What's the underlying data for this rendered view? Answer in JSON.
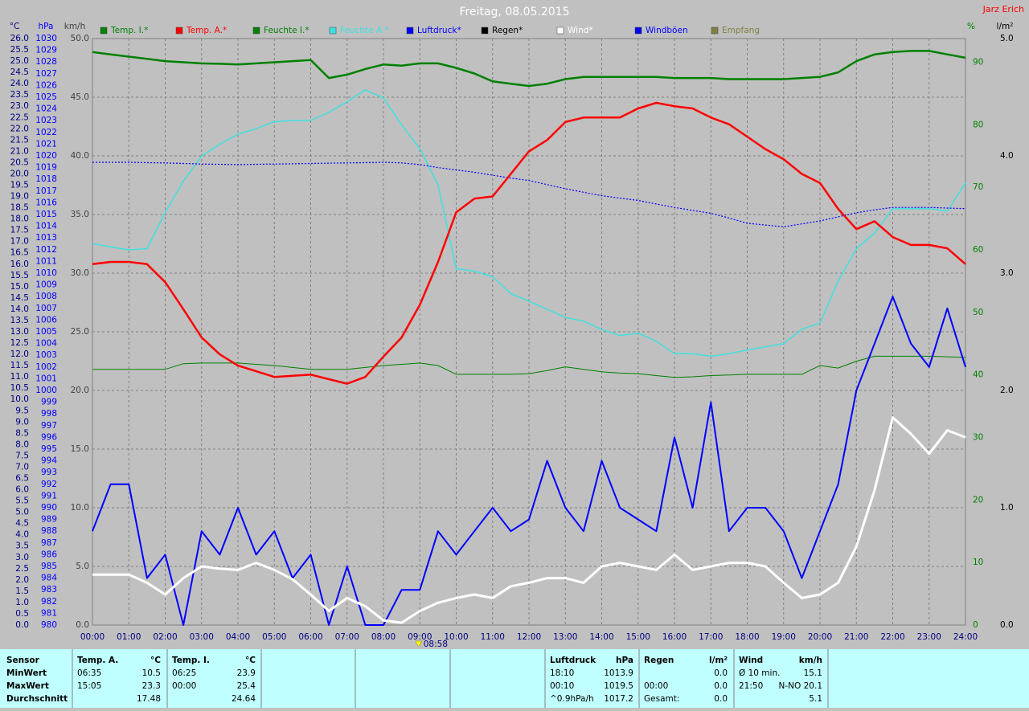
{
  "chart_data": {
    "type": "line",
    "title": "Freitag, 08.05.2015",
    "author": "Jarz Erich",
    "x": [
      0,
      0.5,
      1,
      1.5,
      2,
      2.5,
      3,
      3.5,
      4,
      4.5,
      5,
      5.5,
      6,
      6.5,
      7,
      7.5,
      8,
      8.5,
      9,
      9.5,
      10,
      10.5,
      11,
      11.5,
      12,
      12.5,
      13,
      13.5,
      14,
      14.5,
      15,
      15.5,
      16,
      16.5,
      17,
      17.5,
      18,
      18.5,
      19,
      19.5,
      20,
      20.5,
      21,
      21.5,
      22,
      22.5,
      23,
      23.5,
      24
    ],
    "xlim": [
      0,
      24
    ],
    "xticks": [
      {
        "value": 0,
        "label": "00:00"
      },
      {
        "value": 1,
        "label": "01:00"
      },
      {
        "value": 2,
        "label": "02:00"
      },
      {
        "value": 3,
        "label": "03:00"
      },
      {
        "value": 4,
        "label": "04:00"
      },
      {
        "value": 5,
        "label": "05:00"
      },
      {
        "value": 6,
        "label": "06:00"
      },
      {
        "value": 7,
        "label": "07:00"
      },
      {
        "value": 8,
        "label": "08:00"
      },
      {
        "value": 9,
        "label": "09:00"
      },
      {
        "value": 10,
        "label": "10:00"
      },
      {
        "value": 11,
        "label": "11:00"
      },
      {
        "value": 12,
        "label": "12:00"
      },
      {
        "value": 13,
        "label": "13:00"
      },
      {
        "value": 14,
        "label": "14:00"
      },
      {
        "value": 15,
        "label": "15:00"
      },
      {
        "value": 16,
        "label": "16:00"
      },
      {
        "value": 17,
        "label": "17:00"
      },
      {
        "value": 18,
        "label": "18:00"
      },
      {
        "value": 19,
        "label": "19:00"
      },
      {
        "value": 20,
        "label": "20:00"
      },
      {
        "value": 21,
        "label": "21:00"
      },
      {
        "value": 22,
        "label": "22:00"
      },
      {
        "value": 23,
        "label": "23:00"
      },
      {
        "value": 24,
        "label": "24:00"
      }
    ],
    "marker": {
      "x": 8.9667,
      "label": "08:58"
    },
    "grid": true,
    "axes": {
      "temp": {
        "unit": "°C",
        "lim": [
          0,
          26
        ],
        "ticks": [
          {
            "value": 0,
            "label": "0.0"
          },
          {
            "value": 0.5,
            "label": "0.5"
          },
          {
            "value": 1,
            "label": "1.0"
          },
          {
            "value": 1.5,
            "label": "1.5"
          },
          {
            "value": 2,
            "label": "2.0"
          },
          {
            "value": 2.5,
            "label": "2.5"
          },
          {
            "value": 3,
            "label": "3.0"
          },
          {
            "value": 3.5,
            "label": "3.5"
          },
          {
            "value": 4,
            "label": "4.0"
          },
          {
            "value": 4.5,
            "label": "4.5"
          },
          {
            "value": 5,
            "label": "5.0"
          },
          {
            "value": 5.5,
            "label": "5.5"
          },
          {
            "value": 6,
            "label": "6.0"
          },
          {
            "value": 6.5,
            "label": "6.5"
          },
          {
            "value": 7,
            "label": "7.0"
          },
          {
            "value": 7.5,
            "label": "7.5"
          },
          {
            "value": 8,
            "label": "8.0"
          },
          {
            "value": 8.5,
            "label": "8.5"
          },
          {
            "value": 9,
            "label": "9.0"
          },
          {
            "value": 9.5,
            "label": "9.5"
          },
          {
            "value": 10,
            "label": "10.0"
          },
          {
            "value": 10.5,
            "label": "10.5"
          },
          {
            "value": 11,
            "label": "11.0"
          },
          {
            "value": 11.5,
            "label": "11.5"
          },
          {
            "value": 12,
            "label": "12.0"
          },
          {
            "value": 12.5,
            "label": "12.5"
          },
          {
            "value": 13,
            "label": "13.0"
          },
          {
            "value": 13.5,
            "label": "13.5"
          },
          {
            "value": 14,
            "label": "14.0"
          },
          {
            "value": 14.5,
            "label": "14.5"
          },
          {
            "value": 15,
            "label": "15.0"
          },
          {
            "value": 15.5,
            "label": "15.5"
          },
          {
            "value": 16,
            "label": "16.0"
          },
          {
            "value": 16.5,
            "label": "16.5"
          },
          {
            "value": 17,
            "label": "17.0"
          },
          {
            "value": 17.5,
            "label": "17.5"
          },
          {
            "value": 18,
            "label": "18.0"
          },
          {
            "value": 18.5,
            "label": "18.5"
          },
          {
            "value": 19,
            "label": "19.0"
          },
          {
            "value": 19.5,
            "label": "19.5"
          },
          {
            "value": 20,
            "label": "20.0"
          },
          {
            "value": 20.5,
            "label": "20.5"
          },
          {
            "value": 21,
            "label": "21.0"
          },
          {
            "value": 21.5,
            "label": "21.5"
          },
          {
            "value": 22,
            "label": "22.0"
          },
          {
            "value": 22.5,
            "label": "22.5"
          },
          {
            "value": 23,
            "label": "23.0"
          },
          {
            "value": 23.5,
            "label": "23.5"
          },
          {
            "value": 24,
            "label": "24.0"
          },
          {
            "value": 24.5,
            "label": "24.5"
          },
          {
            "value": 25,
            "label": "25.0"
          },
          {
            "value": 25.5,
            "label": "25.5"
          },
          {
            "value": 26,
            "label": "26.0"
          }
        ]
      },
      "hpa": {
        "unit": "hPa",
        "lim": [
          980,
          1030
        ],
        "ticks": [
          980,
          981,
          982,
          983,
          984,
          985,
          986,
          987,
          988,
          989,
          990,
          991,
          992,
          993,
          994,
          995,
          996,
          997,
          998,
          999,
          1000,
          1001,
          1002,
          1003,
          1004,
          1005,
          1006,
          1007,
          1008,
          1009,
          1010,
          1011,
          1012,
          1013,
          1014,
          1015,
          1016,
          1017,
          1018,
          1019,
          1020,
          1021,
          1022,
          1023,
          1024,
          1025,
          1026,
          1027,
          1028,
          1029,
          1030
        ]
      },
      "kmh": {
        "unit": "km/h",
        "lim": [
          0,
          50
        ],
        "ticks": [
          {
            "value": 0,
            "label": "0.0"
          },
          {
            "value": 5,
            "label": "5.0"
          },
          {
            "value": 10,
            "label": "10.0"
          },
          {
            "value": 15,
            "label": "15.0"
          },
          {
            "value": 20,
            "label": "20.0"
          },
          {
            "value": 25,
            "label": "25.0"
          },
          {
            "value": 30,
            "label": "30.0"
          },
          {
            "value": 35,
            "label": "35.0"
          },
          {
            "value": 40,
            "label": "40.0"
          },
          {
            "value": 45,
            "label": "45.0"
          },
          {
            "value": 50,
            "label": "50.0"
          }
        ]
      },
      "pct": {
        "unit": "%",
        "lim": [
          0,
          93.8
        ],
        "ticks": [
          0,
          10,
          20,
          30,
          40,
          50,
          60,
          70,
          80,
          90
        ]
      },
      "mm": {
        "unit": "l/m²",
        "lim": [
          0,
          5
        ],
        "ticks": [
          {
            "value": 0,
            "label": "0.0"
          },
          {
            "value": 1,
            "label": "1.0"
          },
          {
            "value": 2,
            "label": "2.0"
          },
          {
            "value": 3,
            "label": "3.0"
          },
          {
            "value": 4,
            "label": "4.0"
          },
          {
            "value": 5,
            "label": "5.0"
          }
        ]
      }
    },
    "series": [
      {
        "name": "Temp. I.*",
        "color": "#008000",
        "axis": "temp",
        "values": [
          25.4,
          25.3,
          25.2,
          25.1,
          25.0,
          24.95,
          24.9,
          24.88,
          24.85,
          24.9,
          24.95,
          25.0,
          25.05,
          24.25,
          24.4,
          24.65,
          24.85,
          24.8,
          24.9,
          24.9,
          24.7,
          24.45,
          24.1,
          24.0,
          23.9,
          24.0,
          24.2,
          24.3,
          24.3,
          24.3,
          24.3,
          24.3,
          24.25,
          24.25,
          24.25,
          24.2,
          24.2,
          24.2,
          24.2,
          24.25,
          24.3,
          24.5,
          25.0,
          25.3,
          25.4,
          25.45,
          25.45,
          25.3,
          25.15
        ]
      },
      {
        "name": "Temp. A.*",
        "color": "#ff0000",
        "axis": "temp",
        "values": [
          16.0,
          16.1,
          16.1,
          16.0,
          15.2,
          14.0,
          12.75,
          12.0,
          11.5,
          11.25,
          11.0,
          11.05,
          11.1,
          10.9,
          10.7,
          11.0,
          11.9,
          12.75,
          14.2,
          16.1,
          18.3,
          18.9,
          19.0,
          20.0,
          21.0,
          21.5,
          22.3,
          22.5,
          22.5,
          22.5,
          22.9,
          23.15,
          23.0,
          22.9,
          22.5,
          22.2,
          21.65,
          21.1,
          20.65,
          20.0,
          19.6,
          18.45,
          17.55,
          17.9,
          17.2,
          16.85,
          16.85,
          16.7,
          16.0
        ]
      },
      {
        "name": "Feuchte I.*",
        "color": "#008000",
        "axis": "pct",
        "values": [
          40.9,
          40.9,
          40.9,
          40.9,
          40.9,
          41.8,
          41.9,
          41.9,
          41.9,
          41.7,
          41.5,
          41.2,
          40.9,
          40.9,
          40.9,
          41.2,
          41.5,
          41.7,
          41.9,
          41.5,
          40.1,
          40.1,
          40.1,
          40.1,
          40.2,
          40.7,
          41.3,
          40.9,
          40.5,
          40.3,
          40.2,
          39.9,
          39.6,
          39.7,
          39.9,
          40.0,
          40.1,
          40.1,
          40.1,
          40.1,
          41.5,
          41.1,
          42.2,
          43.0,
          43.0,
          43.0,
          43.0,
          42.9,
          42.8
        ]
      },
      {
        "name": "Feuchte A.*",
        "color": "#40e0e0",
        "axis": "pct",
        "values": [
          61.0,
          60.5,
          60.0,
          60.2,
          66.0,
          71.0,
          75.0,
          76.9,
          78.5,
          79.4,
          80.5,
          80.7,
          80.7,
          82.0,
          83.7,
          85.6,
          84.3,
          80.0,
          76.2,
          70.4,
          57.0,
          56.6,
          55.7,
          53.0,
          51.8,
          50.5,
          49.2,
          48.6,
          47.3,
          46.3,
          46.7,
          45.4,
          43.4,
          43.4,
          43.0,
          43.4,
          44.0,
          44.5,
          45.0,
          47.3,
          48.3,
          55.0,
          60.2,
          62.7,
          66.6,
          66.6,
          66.6,
          66.2,
          70.7
        ]
      },
      {
        "name": "Luftdruck*",
        "color": "#0000ff",
        "axis": "hpa",
        "style": "dotted",
        "values": [
          1019.45,
          1019.45,
          1019.45,
          1019.42,
          1019.4,
          1019.35,
          1019.3,
          1019.28,
          1019.25,
          1019.28,
          1019.3,
          1019.32,
          1019.35,
          1019.38,
          1019.4,
          1019.42,
          1019.45,
          1019.4,
          1019.25,
          1019.0,
          1018.8,
          1018.6,
          1018.35,
          1018.1,
          1017.9,
          1017.55,
          1017.2,
          1016.9,
          1016.6,
          1016.4,
          1016.2,
          1015.9,
          1015.6,
          1015.35,
          1015.1,
          1014.7,
          1014.25,
          1014.1,
          1013.95,
          1014.2,
          1014.45,
          1014.8,
          1015.15,
          1015.4,
          1015.6,
          1015.6,
          1015.6,
          1015.55,
          1015.5
        ]
      },
      {
        "name": "Regen*",
        "color": "#000000",
        "axis": "mm",
        "values": [
          null,
          null,
          null,
          null,
          null,
          null,
          null,
          null,
          null,
          null,
          null,
          null,
          null,
          null,
          null,
          null,
          null,
          null,
          null,
          null,
          null,
          null,
          null,
          null,
          null,
          null,
          null,
          null,
          null,
          null,
          null,
          null,
          null,
          null,
          null,
          null,
          null,
          null,
          null,
          null,
          null,
          null,
          null,
          null,
          null,
          null,
          null,
          null,
          null
        ]
      },
      {
        "name": "Wind*",
        "color": "#ffffff",
        "axis": "kmh",
        "values": [
          4.3,
          4.3,
          4.3,
          3.6,
          2.6,
          4.0,
          5.0,
          4.8,
          4.7,
          5.3,
          4.7,
          3.9,
          2.6,
          1.2,
          2.3,
          1.6,
          0.4,
          0.2,
          1.2,
          1.9,
          2.3,
          2.6,
          2.3,
          3.3,
          3.6,
          4.0,
          4.0,
          3.6,
          5.0,
          5.3,
          5.0,
          4.7,
          6.0,
          4.7,
          5.0,
          5.3,
          5.3,
          5.0,
          3.6,
          2.3,
          2.6,
          3.6,
          6.7,
          11.5,
          17.7,
          16.3,
          14.6,
          16.6,
          16.0
        ]
      },
      {
        "name": "Windböen",
        "color": "#0000ff",
        "axis": "kmh",
        "values": [
          8,
          12,
          12,
          4,
          6,
          0,
          8,
          6,
          10,
          6,
          8,
          4,
          6,
          0,
          5,
          0,
          0,
          3,
          3,
          8,
          6,
          8,
          10,
          8,
          9,
          14,
          10,
          8,
          14,
          10,
          9,
          8,
          16,
          10,
          19,
          8,
          10,
          10,
          8,
          4,
          8,
          12,
          20,
          24,
          28,
          24,
          22,
          27,
          22
        ]
      },
      {
        "name": "Empfang",
        "color": "#808040",
        "axis": "pct",
        "values": [
          null,
          null,
          null,
          null,
          null,
          null,
          null,
          null,
          null,
          null,
          null,
          null,
          null,
          null,
          null,
          null,
          null,
          null,
          null,
          null,
          null,
          null,
          null,
          null,
          null,
          null,
          null,
          null,
          null,
          null,
          null,
          null,
          null,
          null,
          null,
          null,
          null,
          null,
          null,
          null,
          null,
          null,
          null,
          null,
          null,
          null,
          null,
          null,
          null
        ]
      }
    ]
  },
  "summary": {
    "labels": [
      "Sensor",
      "MinWert",
      "MaxWert",
      "Durchschnitt"
    ],
    "columns": [
      {
        "header": [
          "Temp. A.",
          "°C"
        ],
        "rows": [
          [
            "06:35",
            "10.5"
          ],
          [
            "15:05",
            "23.3"
          ],
          [
            null,
            "17.48"
          ]
        ]
      },
      {
        "header": [
          "Temp. I.",
          "°C"
        ],
        "rows": [
          [
            "06:25",
            "23.9"
          ],
          [
            "00:00",
            "25.4"
          ],
          [
            null,
            "24.64"
          ]
        ]
      },
      {
        "header": [
          "Luftdruck",
          "hPa"
        ],
        "rows": [
          [
            "18:10",
            "1013.9"
          ],
          [
            "00:10",
            "1019.5"
          ],
          [
            "^0.9hPa/h",
            "1017.2"
          ]
        ]
      },
      {
        "header": [
          "Regen",
          "l/m²"
        ],
        "rows": [
          [
            null,
            "0.0"
          ],
          [
            "00:00",
            "0.0"
          ],
          [
            "Gesamt:",
            "0.0"
          ]
        ]
      },
      {
        "header": [
          "Wind",
          "km/h"
        ],
        "rows": [
          [
            "Ø 10 min.",
            "15.1"
          ],
          [
            "21:50",
            "N-NO 20.1"
          ],
          [
            null,
            "5.1"
          ]
        ]
      }
    ]
  }
}
